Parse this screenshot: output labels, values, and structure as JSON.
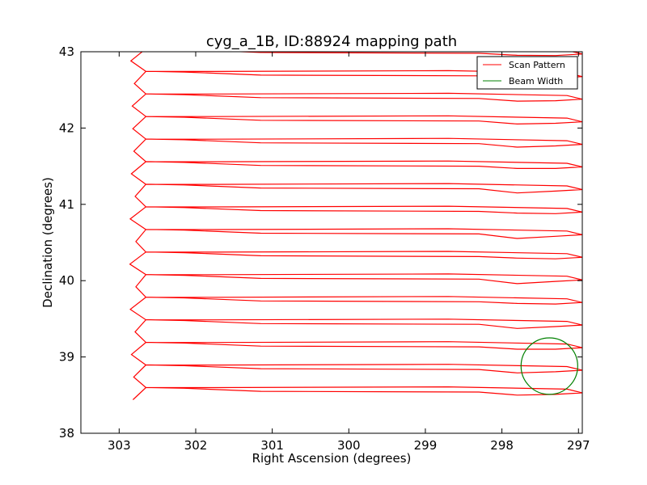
{
  "chart_data": {
    "type": "line",
    "title": "cyg_a_1B, ID:88924 mapping path",
    "xlabel": "Right Ascension (degrees)",
    "ylabel": "Declination (degrees)",
    "xlim": [
      303.5,
      296.95
    ],
    "ylim": [
      38,
      43
    ],
    "xticks": [
      303,
      302,
      301,
      300,
      299,
      298,
      297
    ],
    "yticks": [
      38,
      39,
      40,
      41,
      42,
      43
    ],
    "x_inverted": true,
    "grid": false,
    "legend_position": "top-right",
    "series": [
      {
        "name": "Scan Pattern",
        "color": "#ff0000",
        "shape": "serpentine-raster",
        "ra_left": 302.75,
        "ra_right": 297.0,
        "dec_min": 38.48,
        "dec_max": 43.0,
        "leg_spacing_deg": 0.148
      },
      {
        "name": "Beam Width",
        "color": "#008000",
        "shape": "circle",
        "center_ra": 297.38,
        "center_dec": 38.88,
        "radius_deg": 0.37
      }
    ]
  }
}
